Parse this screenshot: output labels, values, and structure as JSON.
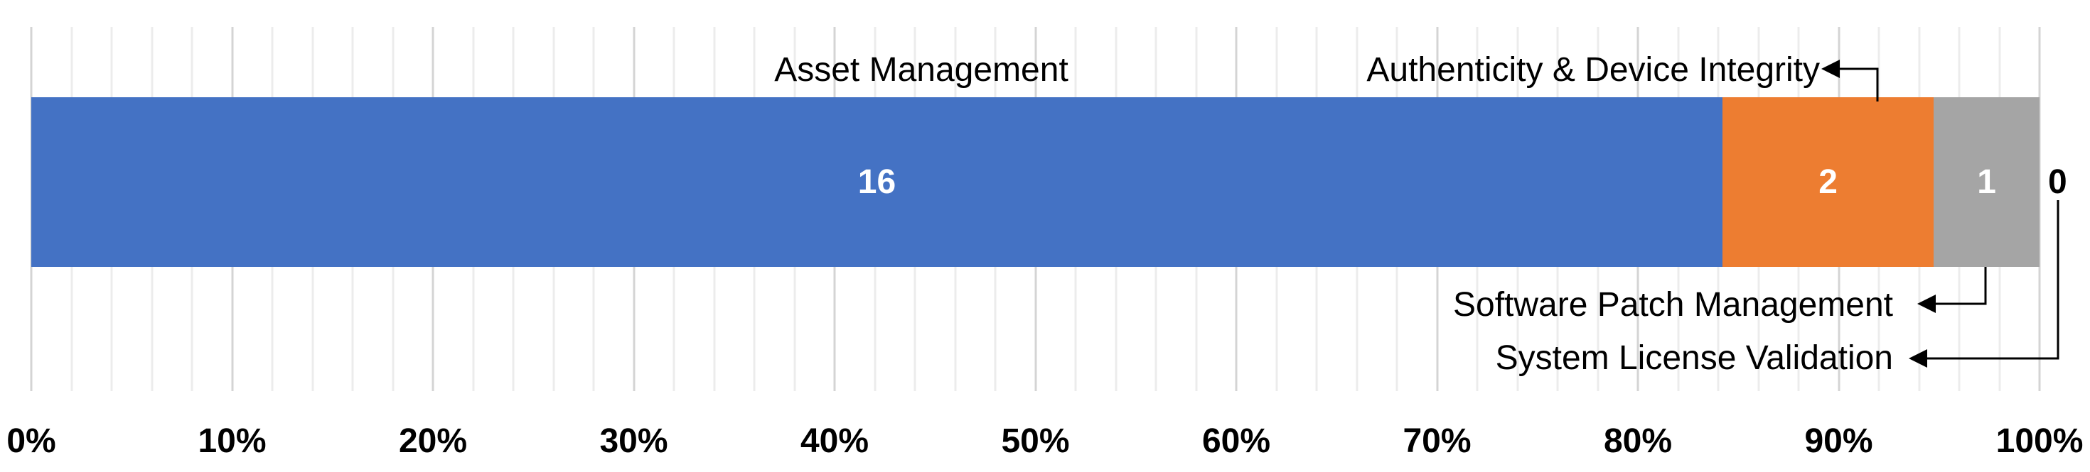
{
  "chart_data": {
    "type": "bar",
    "variant": "horizontal-stacked-100pct",
    "title": "",
    "series": [
      {
        "name": "Asset Management",
        "value": 16,
        "label": "16",
        "color": "#4472C4",
        "label_color": "#FFFFFF",
        "label_position": "inside"
      },
      {
        "name": "Authenticity & Device Integrity",
        "value": 2,
        "label": "2",
        "color": "#ED7D31",
        "label_color": "#FFFFFF",
        "label_position": "inside"
      },
      {
        "name": "Software Patch Management",
        "value": 1,
        "label": "1",
        "color": "#A5A5A5",
        "label_color": "#FFFFFF",
        "label_position": "inside"
      },
      {
        "name": "System License Validation",
        "value": 0,
        "label": "0",
        "color": "#A5A5A5",
        "label_color": "#000000",
        "label_position": "outside-end"
      }
    ],
    "total": 19,
    "x_axis": {
      "min": 0,
      "max": 100,
      "unit": "%",
      "tick_labels": [
        "0%",
        "10%",
        "20%",
        "30%",
        "40%",
        "50%",
        "60%",
        "70%",
        "80%",
        "90%",
        "100%"
      ],
      "major_interval_pct": 10,
      "minor_interval_pct": 2
    },
    "grid": {
      "show": true,
      "major_color": "#D4D4D4",
      "minor_color": "#ECECEC"
    },
    "annotations": [
      {
        "text": "Asset Management",
        "row": "top",
        "arrow": false
      },
      {
        "text": "Authenticity & Device Integrity",
        "row": "top",
        "arrow": true
      },
      {
        "text": "Software Patch Management",
        "row": "bottom-1",
        "arrow": true
      },
      {
        "text": "System License Validation",
        "row": "bottom-2",
        "arrow": true
      }
    ],
    "arrow_color": "#000000",
    "legend": {
      "show": false
    }
  }
}
